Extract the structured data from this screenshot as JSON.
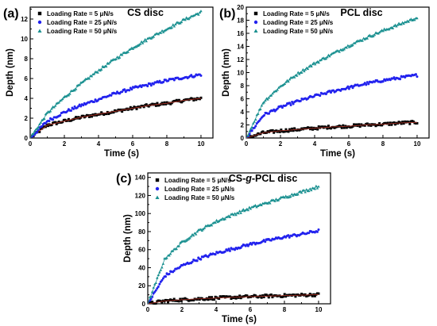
{
  "chart_data": [
    {
      "type": "scatter",
      "panel_label": "(a)",
      "title": "CS disc",
      "xlabel": "Time (s)",
      "ylabel": "Depth (nm)",
      "xlim": [
        0,
        10.7
      ],
      "ylim": [
        0,
        13.2
      ],
      "x_ticks": [
        0,
        2,
        4,
        6,
        8,
        10
      ],
      "y_ticks": [
        0,
        2,
        4,
        6,
        8,
        10,
        12
      ],
      "legend": "top-left",
      "series": [
        {
          "name": "Loading Rate = 5 μN/s",
          "color": "#000000",
          "fit_color": "#c0392b",
          "marker": "square",
          "x": [
            0,
            1,
            2,
            3,
            4,
            5,
            6,
            7,
            8,
            9,
            10
          ],
          "y": [
            0,
            1.3,
            1.7,
            2.1,
            2.4,
            2.7,
            3.0,
            3.3,
            3.5,
            3.8,
            4.0
          ]
        },
        {
          "name": "Loading Rate = 25 μN/s",
          "color": "#2222ee",
          "fit_color": "#2222ee",
          "marker": "circle",
          "x": [
            0,
            1,
            2,
            3,
            4,
            5,
            6,
            7,
            8,
            9,
            10
          ],
          "y": [
            0,
            1.7,
            2.6,
            3.3,
            3.9,
            4.5,
            5.0,
            5.4,
            5.8,
            6.1,
            6.4
          ]
        },
        {
          "name": "Loading Rate = 50 μN/s",
          "color": "#1a9090",
          "fit_color": "#1a9090",
          "marker": "triangle",
          "x": [
            0,
            1,
            2,
            3,
            4,
            5,
            6,
            7,
            8,
            9,
            10
          ],
          "y": [
            0,
            2.5,
            4.1,
            5.5,
            6.8,
            8.0,
            9.1,
            10.1,
            11.0,
            11.9,
            12.7
          ]
        }
      ]
    },
    {
      "type": "scatter",
      "panel_label": "(b)",
      "title": "PCL disc",
      "xlabel": "Time (s)",
      "ylabel": "Depth (nm)",
      "xlim": [
        0,
        10.7
      ],
      "ylim": [
        0,
        20
      ],
      "x_ticks": [
        0,
        2,
        4,
        6,
        8,
        10
      ],
      "y_ticks": [
        0,
        2,
        4,
        6,
        8,
        10,
        12,
        14,
        16,
        18,
        20
      ],
      "legend": "top-left",
      "series": [
        {
          "name": "Loading Rate = 5 μN/s",
          "color": "#000000",
          "fit_color": "#c0392b",
          "marker": "square",
          "x": [
            0,
            1,
            2,
            3,
            4,
            5,
            6,
            7,
            8,
            9,
            10
          ],
          "y": [
            0,
            0.8,
            1.1,
            1.3,
            1.5,
            1.7,
            1.8,
            2.0,
            2.1,
            2.3,
            2.4
          ]
        },
        {
          "name": "Loading Rate = 25 μN/s",
          "color": "#2222ee",
          "fit_color": "#2222ee",
          "marker": "circle",
          "x": [
            0,
            1,
            2,
            3,
            4,
            5,
            6,
            7,
            8,
            9,
            10
          ],
          "y": [
            0,
            3.5,
            4.7,
            5.6,
            6.4,
            7.1,
            7.7,
            8.3,
            8.8,
            9.2,
            9.6
          ]
        },
        {
          "name": "Loading Rate = 50 μN/s",
          "color": "#1a9090",
          "fit_color": "#1a9090",
          "marker": "triangle",
          "x": [
            0,
            1,
            2,
            3,
            4,
            5,
            6,
            7,
            8,
            9,
            10
          ],
          "y": [
            0,
            5.5,
            7.9,
            9.8,
            11.4,
            12.8,
            14.1,
            15.3,
            16.4,
            17.4,
            18.4
          ]
        }
      ]
    },
    {
      "type": "scatter",
      "panel_label": "(c)",
      "title_parts": [
        "CS-",
        "g",
        "-PCL disc"
      ],
      "xlabel": "Time (s)",
      "ylabel": "Depth (nm)",
      "xlim": [
        0,
        10.7
      ],
      "ylim": [
        0,
        145
      ],
      "x_ticks": [
        0,
        2,
        4,
        6,
        8,
        10
      ],
      "y_ticks": [
        0,
        20,
        40,
        60,
        80,
        100,
        120,
        140
      ],
      "legend": "top-left",
      "series": [
        {
          "name": "Loading Rate = 5 μN/s",
          "color": "#000000",
          "fit_color": "#c0392b",
          "marker": "square",
          "x": [
            0,
            1,
            2,
            3,
            4,
            5,
            6,
            7,
            8,
            9,
            10
          ],
          "y": [
            0,
            3.2,
            4.5,
            5.5,
            6.4,
            7.2,
            7.9,
            8.5,
            9.1,
            9.6,
            10.2
          ]
        },
        {
          "name": "Loading Rate = 25 μN/s",
          "color": "#2222ee",
          "fit_color": "#2222ee",
          "marker": "circle",
          "x": [
            0,
            1,
            2,
            3,
            4,
            5,
            6,
            7,
            8,
            9,
            10
          ],
          "y": [
            0,
            31,
            42,
            50,
            56,
            61,
            66,
            70,
            74,
            77,
            81
          ]
        },
        {
          "name": "Loading Rate = 50 μN/s",
          "color": "#1a9090",
          "fit_color": "#1a9090",
          "marker": "triangle",
          "x": [
            0,
            1,
            2,
            3,
            4,
            5,
            6,
            7,
            8,
            9,
            10
          ],
          "y": [
            0,
            50,
            68,
            81,
            91,
            99,
            106,
            112,
            118,
            124,
            130
          ]
        }
      ]
    }
  ]
}
